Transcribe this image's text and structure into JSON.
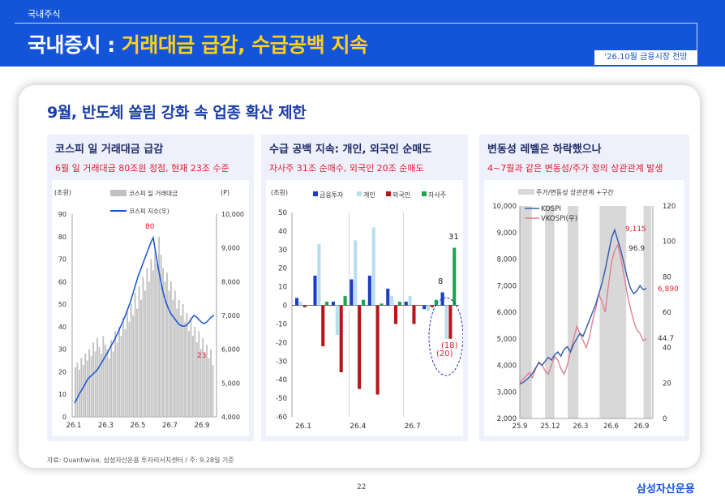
{
  "header": {
    "category": "국내주식",
    "title_white": "국내증시 : ",
    "title_yellow": "거래대금 급감, 수급공백 지속",
    "tag": "'26.10월 금융시장 전망"
  },
  "card_title": "9월, 반도체 쏠림 강화 속 업종 확산 제한",
  "panels": [
    {
      "title": "코스피 일 거래대금 급감",
      "subtitle": "6월 일 거래대금 80조원 정점, 현재 23조 수준"
    },
    {
      "title": "수급 공백 지속: 개인, 외국인 순매도",
      "subtitle": "자사주 31조 순매수, 외국인 20조 순매도"
    },
    {
      "title": "변동성 레벨은 하락했으나",
      "subtitle": "4~7월과 같은 변동성/주가 정의 상관관계 발생"
    }
  ],
  "colors": {
    "blue": "#1454d8",
    "yellow": "#ffd11a",
    "red": "#e0202f",
    "gray_bar": "#c0c0c0",
    "kospi": "#3a5fb0",
    "vkospi": "#e07a8a",
    "inflow_blue": "#1a3cc8",
    "indiv": "#b9dcef",
    "foreign": "#b8141c",
    "buyback": "#1aa64a",
    "shade": "#d8d8d8"
  },
  "chart_data": [
    {
      "type": "bar",
      "legend": [
        "코스피 일 거래대금",
        "코스피 지수(우)"
      ],
      "yunit_left": "(조원)",
      "yunit_right": "(P)",
      "x_ticks": [
        "26.1",
        "26.3",
        "26.5",
        "26.7",
        "26.9"
      ],
      "ylim": [
        0,
        90
      ],
      "y_ticks": [
        "0",
        "10",
        "20",
        "30",
        "40",
        "50",
        "60",
        "70",
        "80",
        "90"
      ],
      "y2lim": [
        4000,
        10000
      ],
      "y2_ticks": [
        "4,000",
        "5,000",
        "6,000",
        "7,000",
        "8,000",
        "9,000",
        "10,000"
      ],
      "bar_values": [
        22,
        24,
        21,
        26,
        23,
        28,
        25,
        30,
        27,
        33,
        29,
        35,
        31,
        28,
        36,
        32,
        30,
        26,
        34,
        29,
        38,
        33,
        40,
        36,
        44,
        39,
        47,
        42,
        50,
        45,
        55,
        48,
        58,
        52,
        62,
        56,
        66,
        60,
        70,
        65,
        74,
        68,
        80,
        72,
        66,
        60,
        64,
        56,
        60,
        52,
        56,
        48,
        52,
        45,
        50,
        42,
        46,
        38,
        44,
        36,
        40,
        33,
        38,
        30,
        35,
        28,
        32,
        26,
        30,
        23
      ],
      "line_values": [
        4400,
        4550,
        4700,
        4820,
        4950,
        5100,
        5180,
        5250,
        5320,
        5400,
        5520,
        5650,
        5780,
        5900,
        6050,
        6180,
        6320,
        6480,
        6650,
        6820,
        7000,
        7200,
        7400,
        7650,
        7900,
        8150,
        8350,
        8550,
        8750,
        8950,
        9150,
        9300,
        8850,
        8400,
        8000,
        7650,
        7400,
        7200,
        7050,
        6950,
        6850,
        6750,
        6700,
        6680,
        6700,
        6780,
        6900,
        7000,
        6960,
        6880,
        6800,
        6760,
        6800,
        6880,
        6960,
        7000
      ],
      "annotations": [
        "80",
        "23"
      ]
    },
    {
      "type": "bar",
      "legend": [
        "금융투자",
        "개인",
        "외국인",
        "자사주"
      ],
      "yunit_left": "(조원)",
      "x_ticks": [
        "26.1",
        "26.4",
        "26.7"
      ],
      "ylim": [
        -60,
        50
      ],
      "y_ticks": [
        "-60",
        "-50",
        "-40",
        "-30",
        "-20",
        "-10",
        "0",
        "10",
        "20",
        "30",
        "40",
        "50"
      ],
      "series": [
        {
          "name": "금융투자",
          "values": [
            4,
            16,
            2,
            14,
            16,
            9,
            2,
            -2,
            7
          ]
        },
        {
          "name": "개인",
          "values": [
            2,
            33,
            -16,
            35,
            42,
            5,
            5,
            -3,
            -18
          ]
        },
        {
          "name": "외국인",
          "values": [
            -1,
            -22,
            -36,
            -45,
            -48,
            -10,
            -10,
            -1,
            -18
          ]
        },
        {
          "name": "자사주",
          "values": [
            0,
            2,
            5,
            3,
            1,
            2,
            0,
            3,
            31
          ]
        }
      ],
      "annotations": [
        "31",
        "8",
        "(18)",
        "(20)"
      ]
    },
    {
      "type": "line",
      "legend": [
        "주가/변동성 상관관계 +구간",
        "KOSPI",
        "VKOSPI(우)"
      ],
      "x_ticks": [
        "25.9",
        "25.12",
        "26.3",
        "26.6",
        "26.9"
      ],
      "ylim": [
        2000,
        10000
      ],
      "y_ticks": [
        "2,000",
        "3,000",
        "4,000",
        "5,000",
        "6,000",
        "7,000",
        "8,000",
        "9,000",
        "10,000"
      ],
      "y2lim": [
        0,
        120
      ],
      "y2_ticks": [
        "0",
        "20",
        "40",
        "60",
        "80",
        "100",
        "120"
      ],
      "kospi": [
        3300,
        3350,
        3450,
        3550,
        3700,
        3900,
        4100,
        4000,
        4150,
        4300,
        4200,
        4400,
        4500,
        4350,
        4600,
        4700,
        4500,
        4800,
        5000,
        5200,
        5100,
        5400,
        5700,
        6000,
        6300,
        6700,
        7100,
        7600,
        8200,
        8800,
        9100,
        8700,
        8300,
        7800,
        7300,
        6900,
        6700,
        6800,
        7000,
        6850,
        6900
      ],
      "vkospi": [
        20,
        22,
        24,
        26,
        23,
        28,
        32,
        30,
        27,
        25,
        30,
        35,
        33,
        28,
        25,
        30,
        38,
        45,
        52,
        48,
        44,
        40,
        46,
        55,
        62,
        70,
        66,
        60,
        75,
        88,
        95,
        98,
        90,
        80,
        70,
        62,
        55,
        50,
        48,
        44,
        45
      ],
      "annotations": [
        "9,115",
        "96.9",
        "6,890",
        "44.7"
      ]
    }
  ],
  "source": "자료: Quantiwise, 삼성자산운용 투자리서치센터 / 주: 9.28일 기준",
  "page_number": "22",
  "brand": "삼성자산운용"
}
